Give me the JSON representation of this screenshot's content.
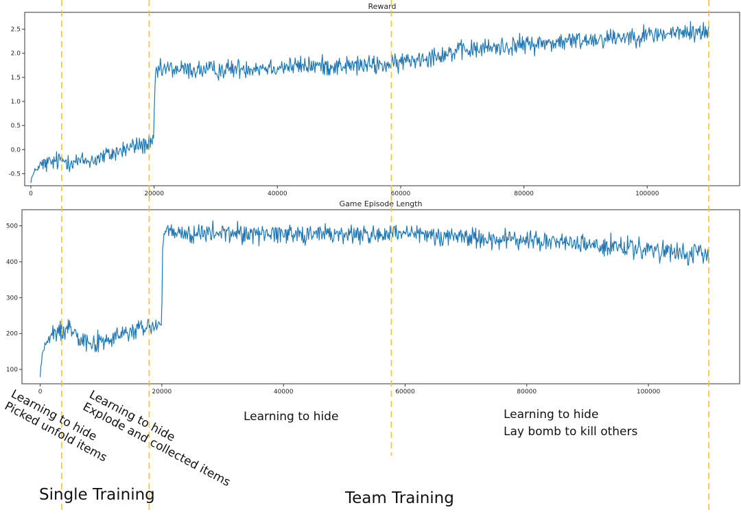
{
  "chart_data": [
    {
      "type": "line",
      "title": "Reward",
      "xlabel": "",
      "ylabel": "",
      "xlim": [
        -1000,
        115000
      ],
      "ylim": [
        -0.75,
        2.85
      ],
      "xticks": [
        0,
        20000,
        40000,
        60000,
        80000,
        100000
      ],
      "yticks": [
        -0.5,
        0.0,
        0.5,
        1.0,
        1.5,
        2.0,
        2.5
      ],
      "ytick_labels": [
        "-0.5",
        "0.0",
        "0.5",
        "1.0",
        "1.5",
        "2.0",
        "2.5"
      ],
      "grid": false,
      "color": "#1f77b4",
      "trend": {
        "x": [
          0,
          1000,
          2000,
          3000,
          5000,
          8000,
          10000,
          14000,
          17000,
          19500,
          19900,
          20200,
          22000,
          25000,
          30000,
          35000,
          40000,
          45000,
          50000,
          55000,
          58000,
          59000,
          60000,
          65000,
          70000,
          75000,
          80000,
          85000,
          90000,
          95000,
          100000,
          105000,
          110000
        ],
        "y": [
          -0.62,
          -0.38,
          -0.32,
          -0.28,
          -0.22,
          -0.25,
          -0.22,
          -0.05,
          0.08,
          0.12,
          0.1,
          1.6,
          1.68,
          1.66,
          1.65,
          1.7,
          1.72,
          1.74,
          1.74,
          1.75,
          1.76,
          1.75,
          1.82,
          1.95,
          2.05,
          2.12,
          2.18,
          2.22,
          2.28,
          2.34,
          2.38,
          2.42,
          2.45
        ]
      },
      "noise": 0.1
    },
    {
      "type": "line",
      "title": "Game Episode Length",
      "xlabel": "",
      "ylabel": "",
      "xlim": [
        -3000,
        115000
      ],
      "ylim": [
        60,
        545
      ],
      "xticks": [
        0,
        20000,
        40000,
        60000,
        80000,
        100000
      ],
      "yticks": [
        100,
        200,
        300,
        400,
        500
      ],
      "ytick_labels": [
        "100",
        "200",
        "300",
        "400",
        "500"
      ],
      "grid": false,
      "color": "#1f77b4",
      "trend": {
        "x": [
          0,
          300,
          800,
          2000,
          4000,
          5000,
          6000,
          7000,
          9000,
          11000,
          14000,
          17000,
          19500,
          19900,
          20200,
          22000,
          25000,
          30000,
          35000,
          40000,
          45000,
          50000,
          55000,
          60000,
          65000,
          70000,
          75000,
          80000,
          85000,
          90000,
          95000,
          100000,
          105000,
          110000
        ],
        "y": [
          80,
          140,
          170,
          195,
          212,
          218,
          205,
          185,
          172,
          180,
          200,
          215,
          225,
          215,
          480,
          478,
          476,
          480,
          478,
          480,
          478,
          476,
          476,
          475,
          474,
          470,
          462,
          460,
          455,
          448,
          440,
          432,
          422,
          418
        ]
      },
      "noise": 14
    }
  ],
  "phase_lines": [
    5000,
    19200,
    58500,
    110000
  ],
  "annotations": {
    "phase1_line1": "Learning to hide",
    "phase1_line2": "Picked unfold items",
    "phase2_line1": "Learning to hide",
    "phase2_line2": "Explode and collected items",
    "phase3": "Learning to hide",
    "phase4_line1": "Learning to hide",
    "phase4_line2": "Lay bomb to kill others",
    "single_training": "Single Training",
    "team_training": "Team Training"
  }
}
